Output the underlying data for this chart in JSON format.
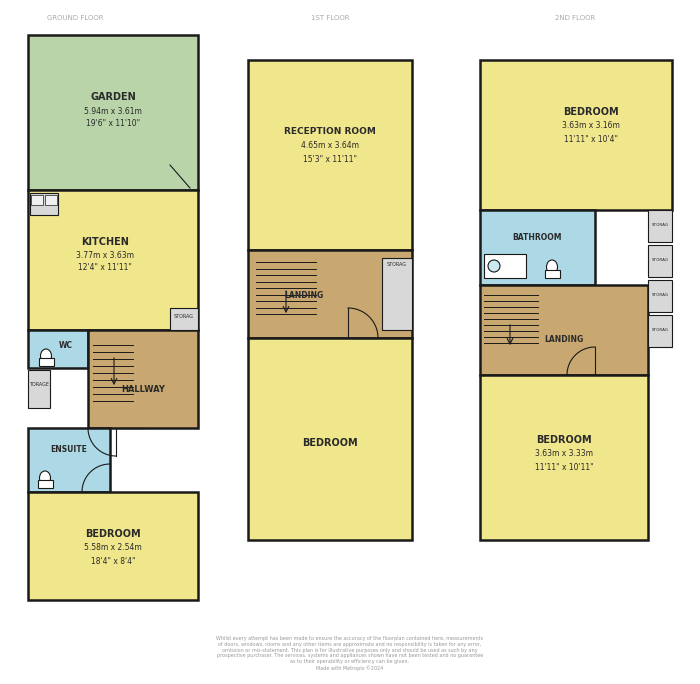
{
  "background": "#ffffff",
  "wall_color": "#1a1a1a",
  "floor_yellow": "#f0e68c",
  "floor_green": "#b8d4a8",
  "floor_blue": "#add8e6",
  "floor_brown": "#c8a870",
  "floor_light_gray": "#d8d8d8",
  "text_dark": "#2a2a2a",
  "title_color": "#aaaaaa",
  "footer_color": "#999999",
  "lw": 1.5,
  "ground_floor_label": "GROUND FLOOR",
  "first_floor_label": "1ST FLOOR",
  "second_floor_label": "2ND FLOOR",
  "footer_text": "Whilst every attempt has been made to ensure the accuracy of the floorplan contained here, measurements\nof doors, windows, rooms and any other items are approximate and no responsibility is taken for any error,\nomission or mis-statement. This plan is for illustrative purposes only and should be used as such by any\nprospective purchaser. The services, systems and appliances shown have not been tested and no guarantee\nas to their operability or efficiency can be given.\nMade with Metropix ©2024"
}
